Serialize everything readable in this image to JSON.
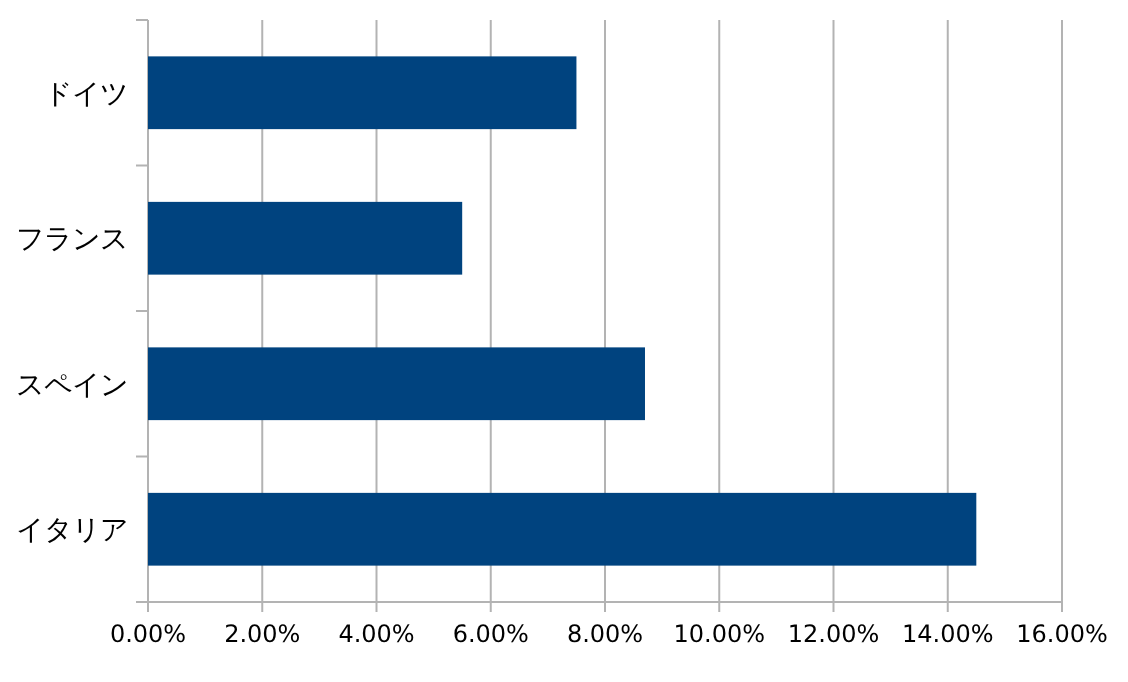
{
  "chart_data": {
    "type": "bar",
    "orientation": "horizontal",
    "categories": [
      "ドイツ",
      "フランス",
      "スペイン",
      "イタリア"
    ],
    "values": [
      7.5,
      5.5,
      8.7,
      14.5
    ],
    "color": "#00437f",
    "xlim": [
      0,
      16
    ],
    "xticks": [
      {
        "value": 0,
        "label": "0.00%"
      },
      {
        "value": 2,
        "label": "2.00%"
      },
      {
        "value": 4,
        "label": "4.00%"
      },
      {
        "value": 6,
        "label": "6.00%"
      },
      {
        "value": 8,
        "label": "8.00%"
      },
      {
        "value": 10,
        "label": "10.00%"
      },
      {
        "value": 12,
        "label": "12.00%"
      },
      {
        "value": 14,
        "label": "14.00%"
      },
      {
        "value": 16,
        "label": "16.00%"
      }
    ],
    "grid": "x"
  }
}
